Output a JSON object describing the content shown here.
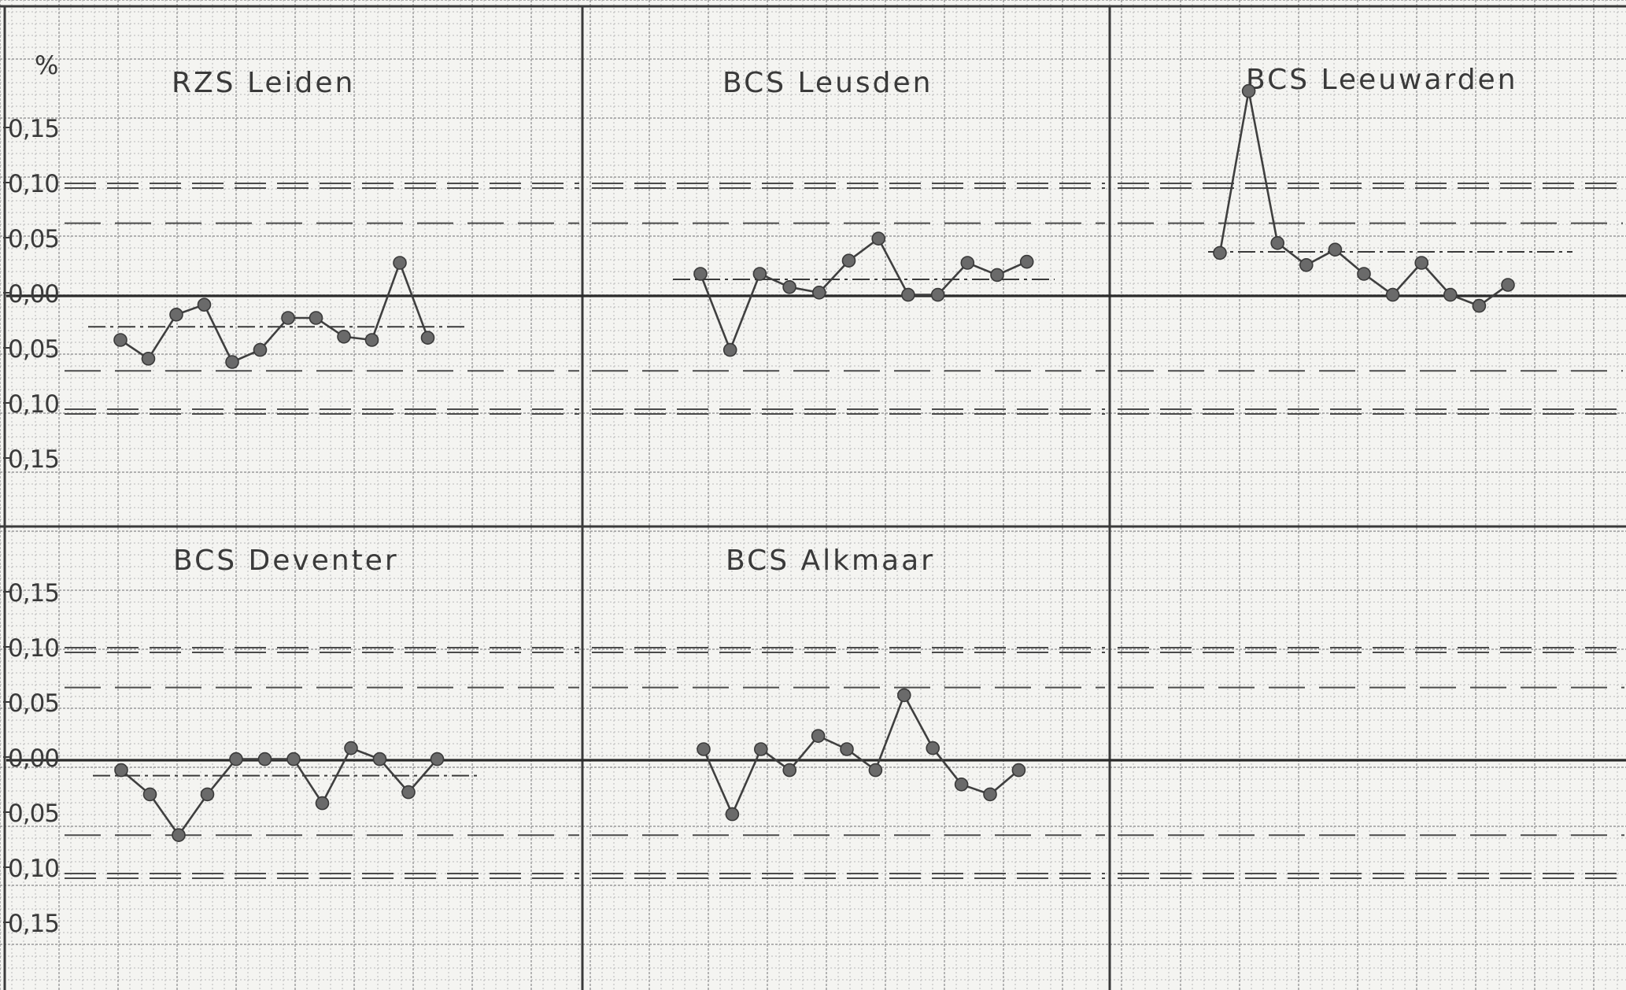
{
  "figure": {
    "unit_label": "%",
    "y_ticks_top": [
      "0,15",
      "0,10",
      "0,05",
      "0,00",
      "0,05",
      "0,10",
      "0,15"
    ],
    "y_ticks_bottom": [
      "0,15",
      "0,10",
      "0,05",
      "0,00",
      "0,05",
      "0,10",
      "0,15"
    ]
  },
  "chart_data": [
    {
      "type": "line",
      "title": "RZS Leiden",
      "ylim": [
        -0.19,
        0.21
      ],
      "y_ticks": [
        0.15,
        0.1,
        0.05,
        0.0,
        -0.05,
        -0.1,
        -0.15
      ],
      "control_limits": {
        "upper_action": 0.1,
        "upper_warning": 0.066,
        "lower_warning": -0.068,
        "lower_action": -0.105
      },
      "mean": -0.028,
      "values": [
        -0.04,
        -0.057,
        -0.017,
        -0.008,
        -0.06,
        -0.049,
        -0.02,
        -0.02,
        -0.037,
        -0.04,
        0.03,
        -0.038
      ]
    },
    {
      "type": "line",
      "title": "BCS Leusden",
      "ylim": [
        -0.19,
        0.21
      ],
      "y_ticks": [
        0.15,
        0.1,
        0.05,
        0.0,
        -0.05,
        -0.1,
        -0.15
      ],
      "control_limits": {
        "upper_action": 0.1,
        "upper_warning": 0.066,
        "lower_warning": -0.068,
        "lower_action": -0.105
      },
      "mean": 0.015,
      "values": [
        0.02,
        -0.049,
        0.02,
        0.008,
        0.003,
        0.032,
        0.052,
        0.001,
        0.001,
        0.03,
        0.019,
        0.031
      ]
    },
    {
      "type": "line",
      "title": "BCS Leeuwarden",
      "ylim": [
        -0.19,
        0.21
      ],
      "y_ticks": [
        0.15,
        0.1,
        0.05,
        0.0,
        -0.05,
        -0.1,
        -0.15
      ],
      "control_limits": {
        "upper_action": 0.1,
        "upper_warning": 0.066,
        "lower_warning": -0.068,
        "lower_action": -0.105
      },
      "mean": 0.04,
      "values": [
        0.039,
        0.186,
        0.048,
        0.028,
        0.042,
        0.02,
        0.001,
        0.03,
        0.001,
        -0.009,
        0.01
      ]
    },
    {
      "type": "line",
      "title": "BCS Deventer",
      "ylim": [
        -0.19,
        0.21
      ],
      "y_ticks": [
        0.15,
        0.1,
        0.05,
        0.0,
        -0.05,
        -0.1,
        -0.15
      ],
      "control_limits": {
        "upper_action": 0.1,
        "upper_warning": 0.066,
        "lower_warning": -0.068,
        "lower_action": -0.105
      },
      "mean": -0.014,
      "values": [
        -0.009,
        -0.031,
        -0.068,
        -0.031,
        0.001,
        0.001,
        0.001,
        -0.039,
        0.011,
        0.001,
        -0.029,
        0.001
      ]
    },
    {
      "type": "line",
      "title": "BCS Alkmaar",
      "ylim": [
        -0.19,
        0.21
      ],
      "y_ticks": [
        0.15,
        0.1,
        0.05,
        0.0,
        -0.05,
        -0.1,
        -0.15
      ],
      "control_limits": {
        "upper_action": 0.1,
        "upper_warning": 0.066,
        "lower_warning": -0.068,
        "lower_action": -0.105
      },
      "values": [
        0.01,
        -0.049,
        0.01,
        -0.009,
        0.022,
        0.01,
        -0.009,
        0.059,
        0.011,
        -0.022,
        -0.031,
        -0.009
      ]
    }
  ]
}
